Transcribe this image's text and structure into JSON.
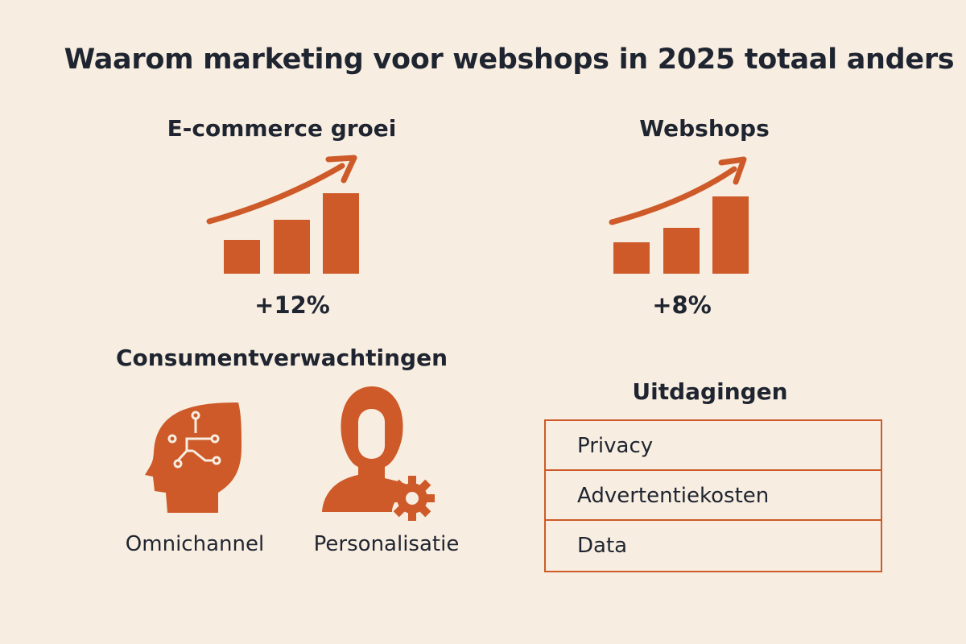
{
  "title": "Waarom marketing voor webshops in 2025 totaal anders",
  "ecommerce": {
    "heading": "E-commerce groei",
    "value": "+12%",
    "icon": "bar-chart-up-arrow-icon"
  },
  "webshops": {
    "heading": "Webshops",
    "value": "+8%",
    "icon": "bar-chart-up-arrow-icon"
  },
  "consumenten": {
    "heading": "Consumentverwachtingen",
    "items": [
      {
        "label": "Omnichannel",
        "icon": "head-circuit-icon"
      },
      {
        "label": "Personalisatie",
        "icon": "person-gear-icon"
      }
    ]
  },
  "uitdagingen": {
    "heading": "Uitdagingen",
    "rows": [
      "Privacy",
      "Advertentiekosten",
      "Data"
    ]
  },
  "colors": {
    "accent": "#cd5a28",
    "background": "#f8ede1",
    "text": "#1f2530"
  }
}
